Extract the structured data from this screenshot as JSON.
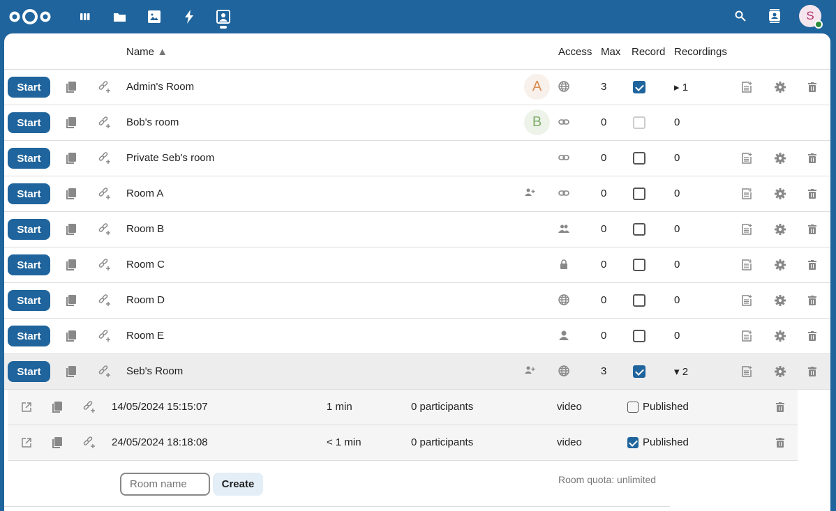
{
  "topbar": {
    "apps": [
      "dashboard-icon",
      "files-icon",
      "photos-icon",
      "activity-icon",
      "bbb-icon"
    ],
    "avatar_letter": "S",
    "brand_color": "#1f649c"
  },
  "table": {
    "headers": {
      "name": "Name",
      "sort": "▲",
      "access": "Access",
      "max": "Max",
      "record": "Record",
      "recordings": "Recordings"
    },
    "start_label": "Start",
    "rows": [
      {
        "name": "Admin's Room",
        "avatar": "A",
        "access": "globe",
        "max": "3",
        "record": true,
        "recordings": "▸ 1",
        "actions": true
      },
      {
        "name": "Bob's room",
        "avatar": "B",
        "access": "link",
        "max": "0",
        "record": false,
        "record_disabled": true,
        "recordings": "0",
        "actions": false
      },
      {
        "name": "Private Seb's room",
        "access": "link",
        "max": "0",
        "record": false,
        "recordings": "0",
        "actions": true
      },
      {
        "name": "Room A",
        "shared": true,
        "access": "link",
        "max": "0",
        "record": false,
        "recordings": "0",
        "actions": true
      },
      {
        "name": "Room B",
        "access": "group",
        "max": "0",
        "record": false,
        "recordings": "0",
        "actions": true
      },
      {
        "name": "Room C",
        "access": "lock",
        "max": "0",
        "record": false,
        "recordings": "0",
        "actions": true
      },
      {
        "name": "Room D",
        "access": "globe",
        "max": "0",
        "record": false,
        "recordings": "0",
        "actions": true
      },
      {
        "name": "Room E",
        "access": "user",
        "max": "0",
        "record": false,
        "recordings": "0",
        "actions": true
      },
      {
        "name": "Seb's Room",
        "shared": true,
        "access": "globe",
        "max": "3",
        "record": true,
        "recordings": "▾ 2",
        "actions": true,
        "selected": true
      }
    ],
    "recordings": [
      {
        "date": "14/05/2024 15:15:07",
        "duration": "1 min",
        "participants": "0 participants",
        "type": "video",
        "published": false,
        "published_label": "Published"
      },
      {
        "date": "24/05/2024 18:18:08",
        "duration": "< 1 min",
        "participants": "0 participants",
        "type": "video",
        "published": true,
        "published_label": "Published"
      }
    ]
  },
  "footer": {
    "room_name_placeholder": "Room name",
    "create_label": "Create",
    "quota": "Room quota: unlimited"
  }
}
